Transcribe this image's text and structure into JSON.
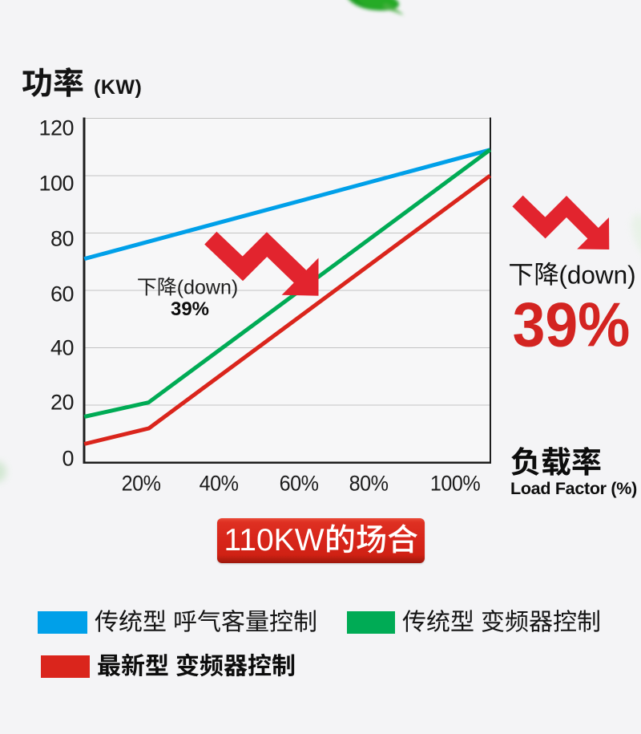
{
  "title": {
    "text": "功率",
    "unit": "(KW)"
  },
  "chart_data": {
    "type": "line",
    "title": "功率 (KW)",
    "x_axis_title_zh": "负载率",
    "x_axis_title_en": "Load Factor (%)",
    "ylim": [
      0,
      120
    ],
    "xlim_load_pct": [
      5.5,
      109
    ],
    "yticks": [
      120,
      100,
      80,
      60,
      40,
      20,
      0
    ],
    "xtick_labels": [
      "20%",
      "40%",
      "60%",
      "80%",
      "100%"
    ],
    "xtick_values": [
      20,
      40,
      60,
      80,
      100
    ],
    "grid": "horizontal",
    "legend_position": "bottom",
    "series": [
      {
        "name": "传统型 呼气客量控制",
        "color": "#00a0e9",
        "points": [
          [
            5.6,
            71
          ],
          [
            109.2,
            109
          ]
        ]
      },
      {
        "name": "传统型 变频器控制",
        "color": "#00ab55",
        "points": [
          [
            5.6,
            16
          ],
          [
            22,
            21
          ],
          [
            109.2,
            109
          ]
        ]
      },
      {
        "name": "最新型 变频器控制",
        "color": "#da251c",
        "points": [
          [
            5.6,
            6.5
          ],
          [
            22.1,
            12
          ],
          [
            109.2,
            100
          ]
        ]
      }
    ],
    "annotations": [
      {
        "location": "mid-chart",
        "text": "下降(down)",
        "value": "39%"
      },
      {
        "location": "right",
        "text": "下降(down)",
        "value": "39%"
      }
    ]
  },
  "badge": {
    "text": "110KW的场合"
  },
  "legend": [
    {
      "label": "传统型 呼气客量控制",
      "color": "#00a0e9",
      "bold": false
    },
    {
      "label": "传统型 变频器控制",
      "color": "#00ab55",
      "bold": false
    },
    {
      "label": "最新型 变频器控制",
      "color": "#da251c",
      "bold": true
    }
  ],
  "colors": {
    "background": "#f4f4f6",
    "plot_background": "#f7f7f8",
    "gridline": "#c3c3c3",
    "axis": "#1d1d1d",
    "series_blue": "#00a0e9",
    "series_green": "#00ab55",
    "series_red": "#da251c",
    "arrow_red": "#e2242e",
    "value_red": "#d32421",
    "badge_red": "#d7251c",
    "text": "#141414"
  }
}
